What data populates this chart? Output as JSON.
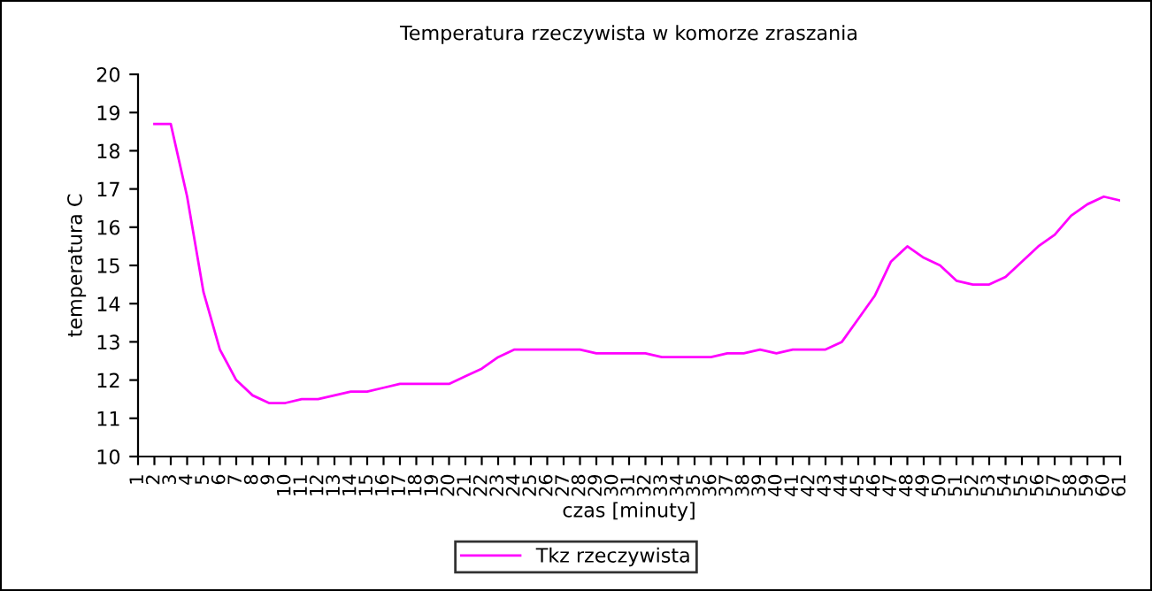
{
  "chart_data": {
    "type": "line",
    "title": "Temperatura rzeczywista w komorze zraszania",
    "xlabel": "czas [minuty]",
    "ylabel": "temperatura C",
    "categories": [
      "1",
      "2",
      "3",
      "4",
      "5",
      "6",
      "7",
      "8",
      "9",
      "10",
      "11",
      "12",
      "13",
      "14",
      "15",
      "16",
      "17",
      "18",
      "19",
      "20",
      "21",
      "22",
      "23",
      "24",
      "25",
      "26",
      "27",
      "28",
      "29",
      "30",
      "31",
      "32",
      "33",
      "34",
      "35",
      "36",
      "37",
      "38",
      "39",
      "40",
      "41",
      "42",
      "43",
      "44",
      "45",
      "46",
      "47",
      "48",
      "49",
      "50",
      "51",
      "52",
      "53",
      "54",
      "55",
      "56",
      "57",
      "58",
      "59",
      "60",
      "61"
    ],
    "series": [
      {
        "name": "Tkz rzeczywista",
        "color": "#ff00ff",
        "values": [
          null,
          18.7,
          18.7,
          16.8,
          14.3,
          12.8,
          12.0,
          11.6,
          11.4,
          11.4,
          11.5,
          11.5,
          11.6,
          11.7,
          11.7,
          11.8,
          11.9,
          11.9,
          11.9,
          11.9,
          12.1,
          12.3,
          12.6,
          12.8,
          12.8,
          12.8,
          12.8,
          12.8,
          12.7,
          12.7,
          12.7,
          12.7,
          12.6,
          12.6,
          12.6,
          12.6,
          12.7,
          12.7,
          12.8,
          12.7,
          12.8,
          12.8,
          12.8,
          13.0,
          13.6,
          14.2,
          15.1,
          15.5,
          15.2,
          15.0,
          14.6,
          14.5,
          14.5,
          14.7,
          15.1,
          15.5,
          15.8,
          16.3,
          16.6,
          16.8,
          16.7
        ]
      }
    ],
    "ylim": [
      10,
      20
    ],
    "yticks": [
      10,
      11,
      12,
      13,
      14,
      15,
      16,
      17,
      18,
      19,
      20
    ],
    "grid": false,
    "legend": "bottom",
    "marker": "none",
    "line_style": "solid"
  }
}
